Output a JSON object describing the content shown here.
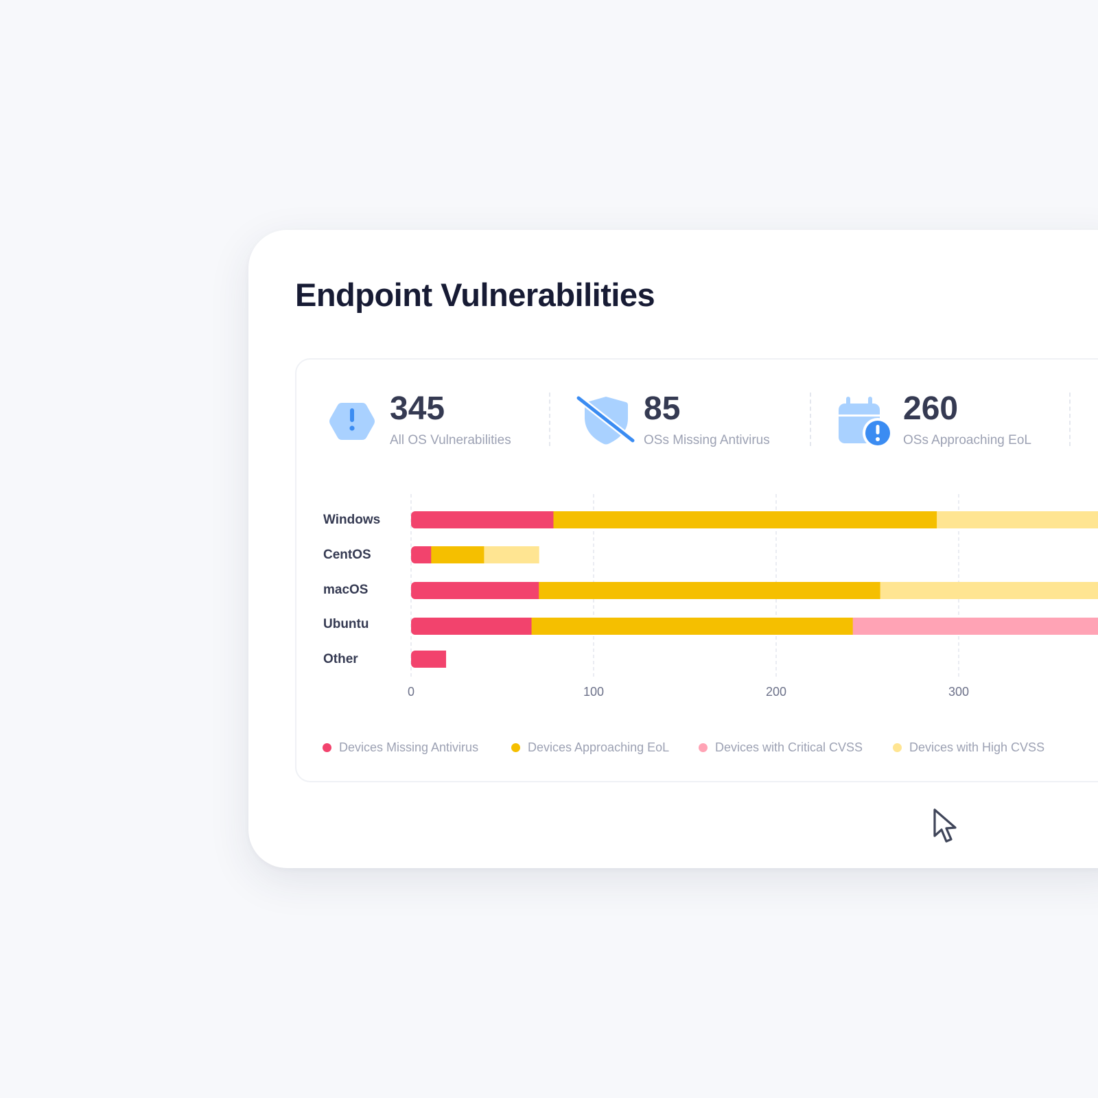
{
  "title": "Endpoint Vulnerabilities",
  "stats": [
    {
      "value": "345",
      "label": "All OS Vulnerabilities",
      "icon": "hexagon-alert-icon"
    },
    {
      "value": "85",
      "label": "OSs Missing Antivirus",
      "icon": "shield-off-icon"
    },
    {
      "value": "260",
      "label": "OSs Approaching EoL",
      "icon": "calendar-alert-icon"
    }
  ],
  "colors": {
    "missing_antivirus": "#f2436d",
    "approaching_eol": "#f5bf00",
    "critical_cvss": "#ffa3b5",
    "high_cvss": "#ffe592",
    "icon_light": "#a9d1ff",
    "icon_dark": "#3b8cf2"
  },
  "chart_data": {
    "type": "bar",
    "orientation": "horizontal",
    "stacked": true,
    "categories": [
      "Windows",
      "CentOS",
      "macOS",
      "Ubuntu",
      "Other"
    ],
    "x_ticks": [
      "0",
      "100",
      "200",
      "300"
    ],
    "grid": true,
    "legend_position": "bottom",
    "series": [
      {
        "name": "Devices Missing Antivirus",
        "values": [
          78,
          11,
          70,
          66,
          19
        ]
      },
      {
        "name": "Devices Approaching EoL",
        "values": [
          210,
          29,
          187,
          176,
          0
        ]
      },
      {
        "name": "Devices with Critical CVSS",
        "values": [
          0,
          0,
          0,
          141,
          0
        ]
      },
      {
        "name": "Devices with High CVSS",
        "values": [
          105,
          30,
          122,
          0,
          0
        ]
      }
    ]
  },
  "cursor": "pointer-cursor-icon"
}
